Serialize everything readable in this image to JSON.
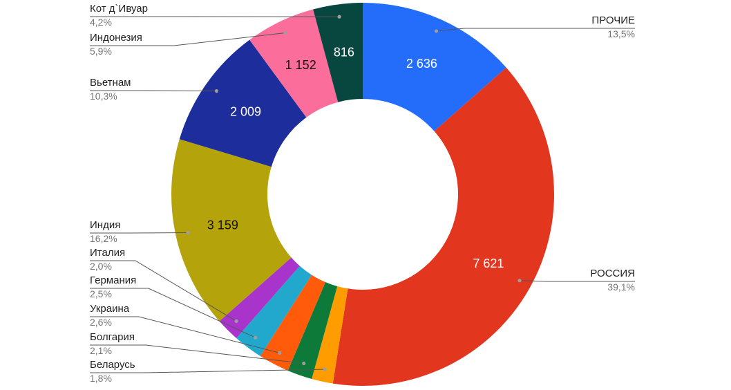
{
  "chart_data": {
    "type": "pie",
    "donut": true,
    "title": "",
    "legend": "callout-labels",
    "slices": [
      {
        "name": "ПРОЧИЕ",
        "value": 2636,
        "value_label": "2 636",
        "percent": "13,5%",
        "color": "#246dfa",
        "value_color": "#ffffff"
      },
      {
        "name": "РОССИЯ",
        "value": 7621,
        "value_label": "7 621",
        "percent": "39,1%",
        "color": "#e2361f",
        "value_color": "#ffffff"
      },
      {
        "name": "Беларусь",
        "value": 351,
        "value_label": "",
        "percent": "1,8%",
        "color": "#ff9d00",
        "value_color": "#ffffff"
      },
      {
        "name": "Болгария",
        "value": 410,
        "value_label": "",
        "percent": "2,1%",
        "color": "#0e7a3a",
        "value_color": "#ffffff"
      },
      {
        "name": "Украина",
        "value": 507,
        "value_label": "",
        "percent": "2,6%",
        "color": "#ff5b0a",
        "value_color": "#ffffff"
      },
      {
        "name": "Германия",
        "value": 487,
        "value_label": "",
        "percent": "2,5%",
        "color": "#22a8cc",
        "value_color": "#ffffff"
      },
      {
        "name": "Италия",
        "value": 390,
        "value_label": "",
        "percent": "2,0%",
        "color": "#a834cc",
        "value_color": "#ffffff"
      },
      {
        "name": "Индия",
        "value": 3159,
        "value_label": "3 159",
        "percent": "16,2%",
        "color": "#b5a30b",
        "value_color": "#111111"
      },
      {
        "name": "Вьетнам",
        "value": 2009,
        "value_label": "2 009",
        "percent": "10,3%",
        "color": "#1e2d9c",
        "value_color": "#ffffff"
      },
      {
        "name": "Индонезия",
        "value": 1152,
        "value_label": "1 152",
        "percent": "5,9%",
        "color": "#fb6e9b",
        "value_color": "#111111"
      },
      {
        "name": "Кот д`Ивуар",
        "value": 816,
        "value_label": "816",
        "percent": "4,2%",
        "color": "#08473f",
        "value_color": "#ffffff"
      }
    ]
  }
}
